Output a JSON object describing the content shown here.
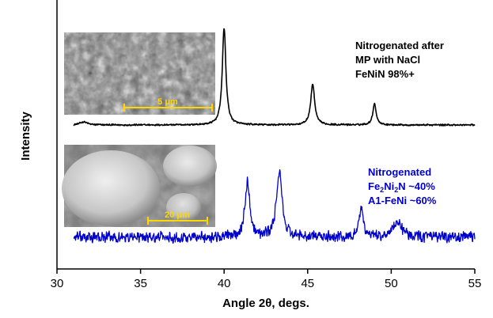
{
  "chart_data": {
    "type": "line",
    "xlabel": "Angle 2θ, degs.",
    "ylabel": "Intensity",
    "xlim": [
      30,
      55
    ],
    "xticks": [
      30,
      35,
      40,
      45,
      50,
      55
    ],
    "y_ticks_shown": false,
    "grid": false,
    "series": [
      {
        "name": "Nitrogenated after MP with NaCl FeNiN 98%+",
        "color": "#000000",
        "baseline": 0.5,
        "noise": 0.25,
        "peaks": [
          {
            "x": 31.6,
            "height": 0.8,
            "width": 0.25
          },
          {
            "x": 40.0,
            "height": 24.5,
            "width": 0.13
          },
          {
            "x": 45.3,
            "height": 10.3,
            "width": 0.14
          },
          {
            "x": 49.0,
            "height": 5.4,
            "width": 0.12
          }
        ]
      },
      {
        "name": "Nitrogenated Fe2Ni2N ~40% A1-FeNi ~60%",
        "color": "#0000cc",
        "baseline": 0.3,
        "noise": 1.6,
        "peaks": [
          {
            "x": 41.4,
            "height": 13.8,
            "width": 0.18
          },
          {
            "x": 43.3,
            "height": 16.8,
            "width": 0.19
          },
          {
            "x": 48.2,
            "height": 7.3,
            "width": 0.15
          },
          {
            "x": 50.4,
            "height": 3.5,
            "width": 0.35
          }
        ]
      }
    ]
  },
  "annotations": {
    "top": [
      "Nitrogenated after",
      "MP with NaCl",
      "FeNiN 98%+"
    ],
    "bottom": {
      "line1": "Nitrogenated",
      "line2_parts": [
        "Fe",
        "2",
        "Ni",
        "2",
        "N ~40%"
      ],
      "line3": "A1-FeNi ~60%"
    }
  },
  "insets": [
    {
      "name": "sem-image-top",
      "scale_label": "5 μm"
    },
    {
      "name": "sem-image-bottom",
      "scale_label": "20 μm"
    }
  ]
}
